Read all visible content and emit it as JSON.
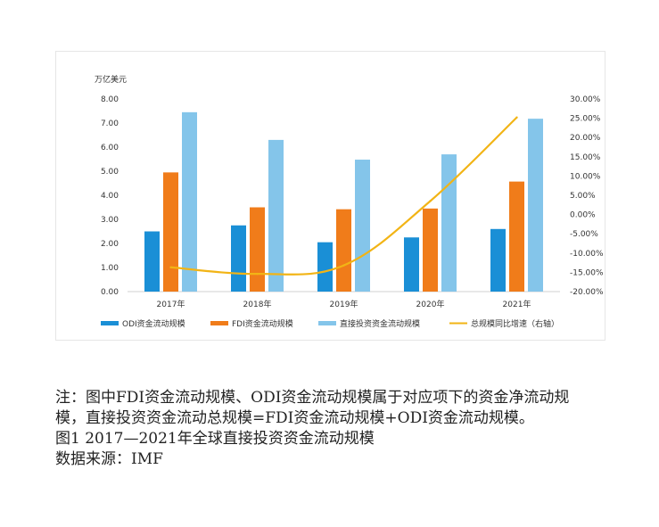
{
  "chart_data": {
    "type": "bar",
    "ylabel": "万亿美元",
    "categories": [
      "2017年",
      "2018年",
      "2019年",
      "2020年",
      "2021年"
    ],
    "series": [
      {
        "name": "ODI资金流动规模",
        "type": "bar",
        "axis": "left",
        "color": "#1a8fd6",
        "values": [
          2.5,
          2.75,
          2.05,
          2.25,
          2.6
        ]
      },
      {
        "name": "FDI资金流动规模",
        "type": "bar",
        "axis": "left",
        "color": "#f07c1a",
        "values": [
          4.95,
          3.5,
          3.42,
          3.45,
          4.57
        ]
      },
      {
        "name": "直接投资资金流动规模",
        "type": "bar",
        "axis": "left",
        "color": "#84c5ea",
        "values": [
          7.45,
          6.3,
          5.48,
          5.7,
          7.18
        ]
      },
      {
        "name": "总规模同比增速（右轴）",
        "type": "line",
        "axis": "right",
        "color": "#f2b415",
        "values": [
          -13.7,
          -15.4,
          -13.2,
          3.5,
          25.2
        ]
      }
    ],
    "left_ticks": [
      "0.00",
      "1.00",
      "2.00",
      "3.00",
      "4.00",
      "5.00",
      "6.00",
      "7.00",
      "8.00"
    ],
    "right_ticks": [
      "-20.00%",
      "-15.00%",
      "-10.00%",
      "-5.00%",
      "0.00%",
      "5.00%",
      "10.00%",
      "15.00%",
      "20.00%",
      "25.00%",
      "30.00%"
    ],
    "ylim_left": [
      0,
      8
    ],
    "ylim_right": [
      -20,
      30
    ],
    "grid": false,
    "legend_position": "bottom"
  },
  "caption": {
    "note": "注：图中FDI资金流动规模、ODI资金流动规模属于对应项下的资金净流动规模，直接投资资金流动总规模=FDI资金流动规模+ODI资金流动规模。",
    "figure_title": "图1  2017—2021年全球直接投资资金流动规模",
    "source": "数据来源：IMF"
  }
}
